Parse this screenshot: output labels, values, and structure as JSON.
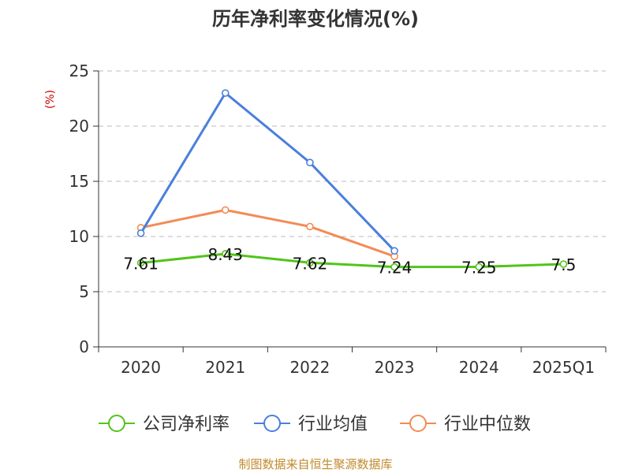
{
  "chart_data": {
    "type": "line",
    "title": "历年净利率变化情况(%)",
    "ylabel": "(%)",
    "xlabel": "",
    "categories": [
      "2020",
      "2021",
      "2022",
      "2023",
      "2024",
      "2025Q1"
    ],
    "ylim": [
      0,
      25
    ],
    "yticks": [
      0,
      5,
      10,
      15,
      20,
      25
    ],
    "grid": true,
    "legend_position": "bottom",
    "series": [
      {
        "name": "公司净利率",
        "color": "#52c41a",
        "values": [
          7.61,
          8.43,
          7.62,
          7.24,
          7.25,
          7.5
        ],
        "labels": [
          "7.61",
          "8.43",
          "7.62",
          "7.24",
          "7.25",
          "7.5"
        ]
      },
      {
        "name": "行业均值",
        "color": "#4a7fdc",
        "values": [
          10.3,
          23.0,
          16.7,
          8.7,
          null,
          null
        ]
      },
      {
        "name": "行业中位数",
        "color": "#f28c55",
        "values": [
          10.8,
          12.4,
          10.9,
          8.2,
          null,
          null
        ]
      }
    ]
  },
  "source": "制图数据来自恒生聚源数据库"
}
